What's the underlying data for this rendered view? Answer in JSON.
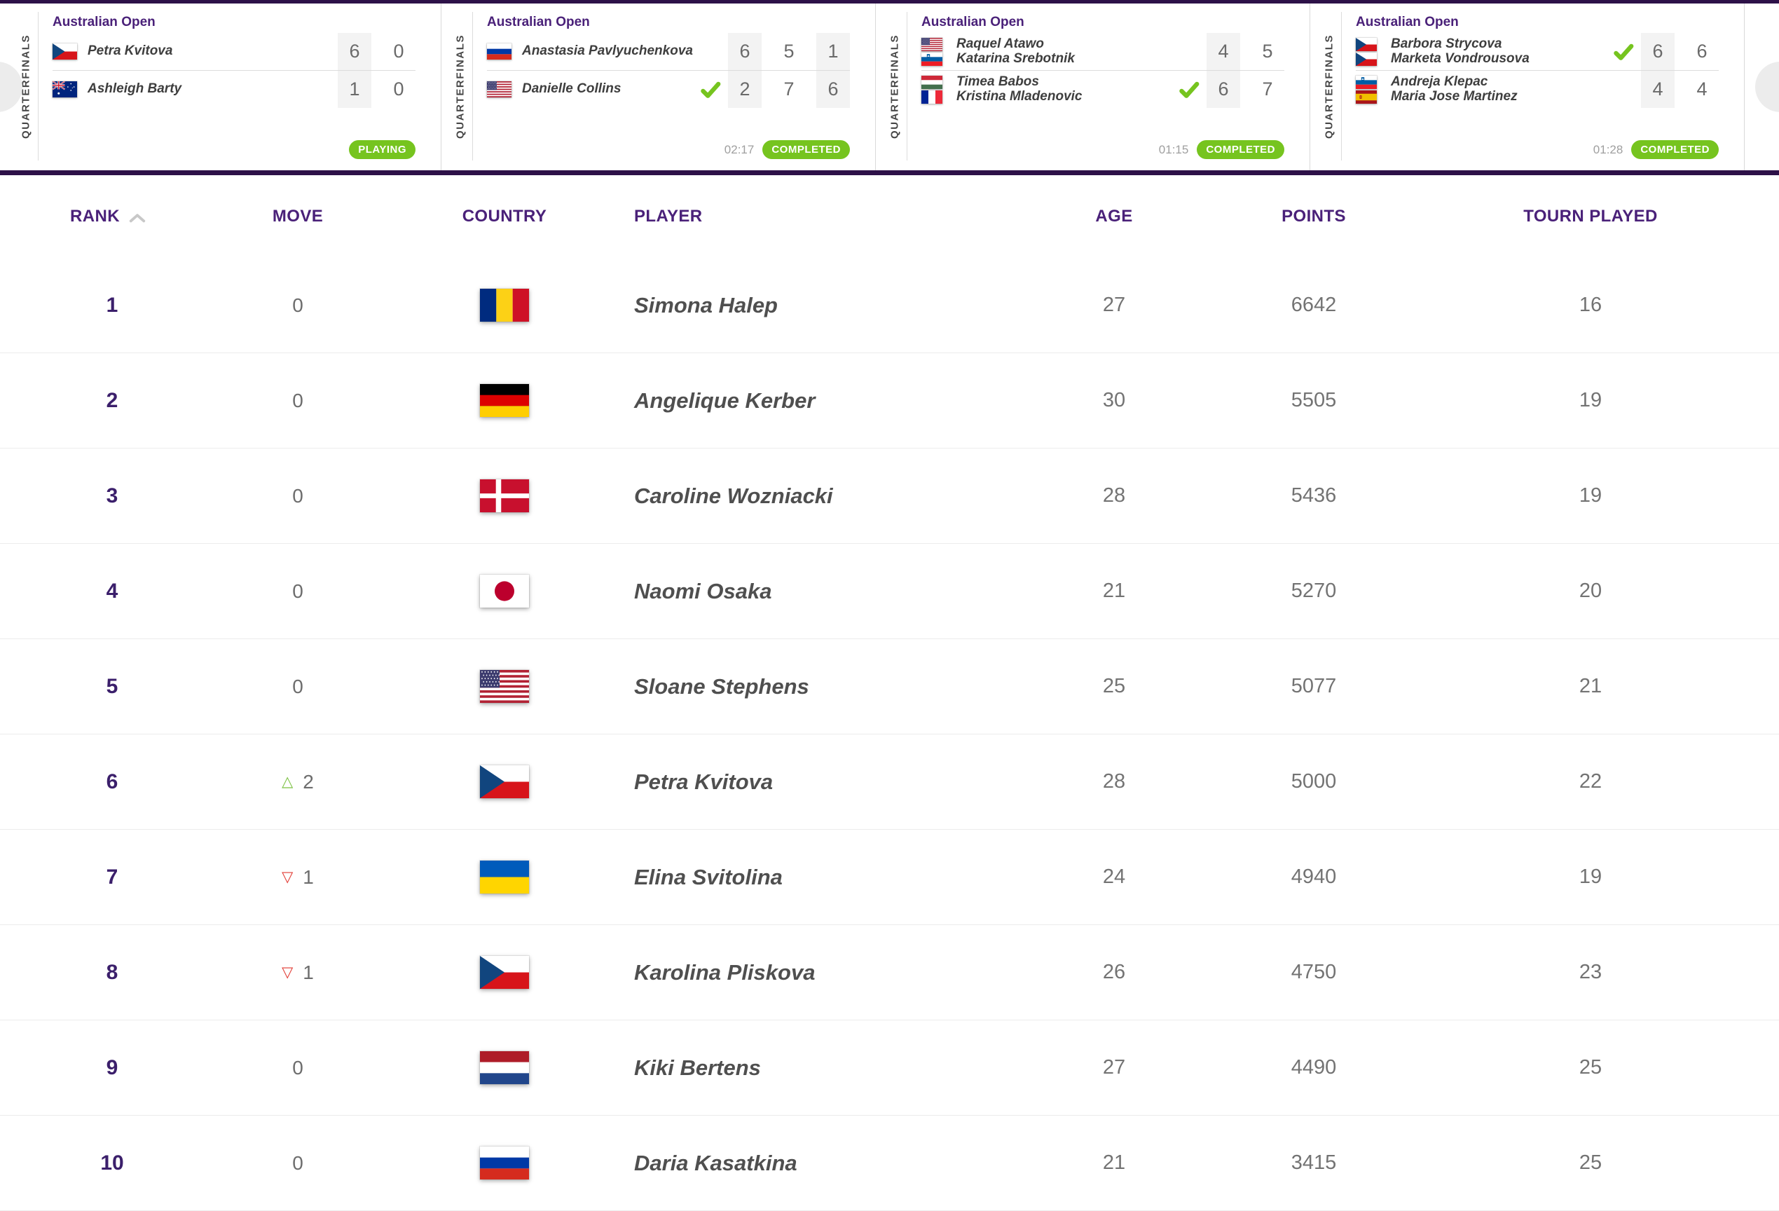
{
  "colors": {
    "accent_purple": "#4a2179",
    "dark_purple_border": "#2d1148",
    "status_green": "#76c41f",
    "move_up_green": "#7cc142",
    "move_down_red": "#e23b33",
    "rank_purple": "#3b1f6b"
  },
  "icons": {
    "sort_ascending": "chevron-up",
    "carousel_prev": "chevron-left",
    "carousel_next": "chevron-right",
    "winner": "check-mark",
    "move_up_glyph": "△",
    "move_down_glyph": "▽"
  },
  "carousel": {
    "matches": [
      {
        "tournament": "Australian Open",
        "round": "QUARTERFINALS",
        "teams": [
          {
            "names": [
              "Petra Kvitova"
            ],
            "flags": [
              "cz"
            ],
            "scores": [
              "6",
              "0"
            ],
            "winner": false
          },
          {
            "names": [
              "Ashleigh Barty"
            ],
            "flags": [
              "au"
            ],
            "scores": [
              "1",
              "0"
            ],
            "winner": false
          }
        ],
        "duration": "",
        "status": "PLAYING"
      },
      {
        "tournament": "Australian Open",
        "round": "QUARTERFINALS",
        "teams": [
          {
            "names": [
              "Anastasia Pavlyuchenkova"
            ],
            "flags": [
              "ru"
            ],
            "scores": [
              "6",
              "5",
              "1"
            ],
            "winner": false
          },
          {
            "names": [
              "Danielle Collins"
            ],
            "flags": [
              "us"
            ],
            "scores": [
              "2",
              "7",
              "6"
            ],
            "winner": true
          }
        ],
        "duration": "02:17",
        "status": "COMPLETED"
      },
      {
        "tournament": "Australian Open",
        "round": "QUARTERFINALS",
        "teams": [
          {
            "names": [
              "Raquel Atawo",
              "Katarina Srebotnik"
            ],
            "flags": [
              "us",
              "si"
            ],
            "scores": [
              "4",
              "5"
            ],
            "winner": false
          },
          {
            "names": [
              "Timea Babos",
              "Kristina Mladenovic"
            ],
            "flags": [
              "hu",
              "fr"
            ],
            "scores": [
              "6",
              "7"
            ],
            "winner": true
          }
        ],
        "duration": "01:15",
        "status": "COMPLETED"
      },
      {
        "tournament": "Australian Open",
        "round": "QUARTERFINALS",
        "teams": [
          {
            "names": [
              "Barbora Strycova",
              "Marketa Vondrousova"
            ],
            "flags": [
              "cz",
              "cz"
            ],
            "scores": [
              "6",
              "6"
            ],
            "winner": true
          },
          {
            "names": [
              "Andreja Klepac",
              "Maria Jose Martinez"
            ],
            "flags": [
              "si",
              "es"
            ],
            "scores": [
              "4",
              "4"
            ],
            "winner": false
          }
        ],
        "duration": "01:28",
        "status": "COMPLETED"
      }
    ]
  },
  "table": {
    "headers": {
      "rank": "RANK",
      "move": "MOVE",
      "country": "COUNTRY",
      "player": "PLAYER",
      "age": "AGE",
      "points": "POINTS",
      "tourn": "TOURN PLAYED"
    },
    "rows": [
      {
        "rank": "1",
        "move": {
          "direction": "none",
          "value": "0"
        },
        "flag": "ro",
        "player": "Simona Halep",
        "age": "27",
        "points": "6642",
        "tourn": "16"
      },
      {
        "rank": "2",
        "move": {
          "direction": "none",
          "value": "0"
        },
        "flag": "de",
        "player": "Angelique Kerber",
        "age": "30",
        "points": "5505",
        "tourn": "19"
      },
      {
        "rank": "3",
        "move": {
          "direction": "none",
          "value": "0"
        },
        "flag": "dk",
        "player": "Caroline Wozniacki",
        "age": "28",
        "points": "5436",
        "tourn": "19"
      },
      {
        "rank": "4",
        "move": {
          "direction": "none",
          "value": "0"
        },
        "flag": "jp",
        "player": "Naomi Osaka",
        "age": "21",
        "points": "5270",
        "tourn": "20"
      },
      {
        "rank": "5",
        "move": {
          "direction": "none",
          "value": "0"
        },
        "flag": "us",
        "player": "Sloane Stephens",
        "age": "25",
        "points": "5077",
        "tourn": "21"
      },
      {
        "rank": "6",
        "move": {
          "direction": "up",
          "value": "2"
        },
        "flag": "cz",
        "player": "Petra Kvitova",
        "age": "28",
        "points": "5000",
        "tourn": "22"
      },
      {
        "rank": "7",
        "move": {
          "direction": "down",
          "value": "1"
        },
        "flag": "ua",
        "player": "Elina Svitolina",
        "age": "24",
        "points": "4940",
        "tourn": "19"
      },
      {
        "rank": "8",
        "move": {
          "direction": "down",
          "value": "1"
        },
        "flag": "cz",
        "player": "Karolina Pliskova",
        "age": "26",
        "points": "4750",
        "tourn": "23"
      },
      {
        "rank": "9",
        "move": {
          "direction": "none",
          "value": "0"
        },
        "flag": "nl",
        "player": "Kiki Bertens",
        "age": "27",
        "points": "4490",
        "tourn": "25"
      },
      {
        "rank": "10",
        "move": {
          "direction": "none",
          "value": "0"
        },
        "flag": "ru",
        "player": "Daria Kasatkina",
        "age": "21",
        "points": "3415",
        "tourn": "25"
      }
    ]
  }
}
